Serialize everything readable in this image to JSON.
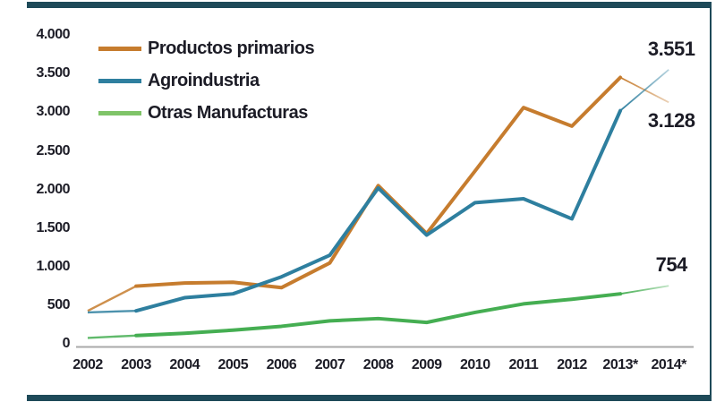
{
  "frame": {
    "color": "#1E4A59"
  },
  "axis": {
    "line_color": "#A9A9A9"
  },
  "text_color": "#1C1C26",
  "legend": {
    "items": [
      {
        "label": "Productos primarios",
        "swatch_color": "#C67C2E"
      },
      {
        "label": "Agroindustria",
        "swatch_color": "#2E7F9F"
      },
      {
        "label": "Otras Manufacturas",
        "swatch_color": "#7FC468"
      }
    ]
  },
  "chart_data": {
    "type": "line",
    "title": "",
    "xlabel": "",
    "ylabel": "",
    "x_labels": [
      "2002",
      "2003",
      "2004",
      "2005",
      "2006",
      "2007",
      "2008",
      "2009",
      "2010",
      "2011",
      "2012",
      "2013*",
      "2014*"
    ],
    "y_ticks": [
      "0",
      "500",
      "1.000",
      "1.500",
      "2.000",
      "2.500",
      "3.000",
      "3.500",
      "4.000"
    ],
    "y_tick_values": [
      0,
      500,
      1000,
      1500,
      2000,
      2500,
      3000,
      3500,
      4000
    ],
    "ylim": [
      0,
      4000
    ],
    "grid": false,
    "legend_position": "top-left",
    "projection_style": "segment 2013* to 2014* drawn thin and faded",
    "series": [
      {
        "name": "Productos primarios",
        "color": "#C67C2E",
        "values": [
          430,
          750,
          790,
          800,
          730,
          1050,
          2050,
          1430,
          2240,
          3060,
          2820,
          3450,
          3128
        ],
        "end_label": "3.128",
        "end_label_dy": 8
      },
      {
        "name": "Agroindustria",
        "color": "#2E7F9F",
        "values": [
          410,
          430,
          600,
          650,
          870,
          1150,
          2020,
          1410,
          1830,
          1880,
          1620,
          3020,
          3551
        ],
        "end_label": "3.551",
        "end_label_dy": -36
      },
      {
        "name": "Otras Manufacturas",
        "color": "#45AE52",
        "values": [
          80,
          110,
          140,
          180,
          230,
          300,
          330,
          280,
          410,
          520,
          580,
          650,
          754
        ],
        "end_label": "754",
        "end_label_dy": -36
      }
    ]
  }
}
